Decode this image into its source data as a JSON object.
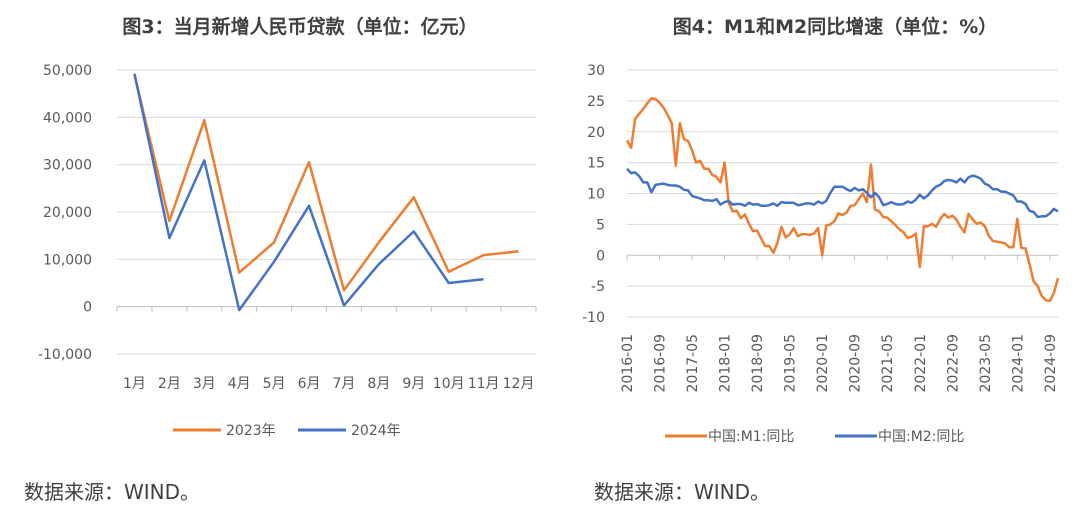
{
  "charts": {
    "left": {
      "title": "图3：当月新增人民币贷款（单位：亿元）",
      "source": "数据来源：WIND。"
    },
    "right": {
      "title": "图4：M1和M2同比增速（单位：%）",
      "source": "数据来源：WIND。"
    }
  },
  "chart_data": [
    {
      "type": "line",
      "title": "图3：当月新增人民币贷款（单位：亿元）",
      "categories": [
        "1月",
        "2月",
        "3月",
        "4月",
        "5月",
        "6月",
        "7月",
        "8月",
        "9月",
        "10月",
        "11月",
        "12月"
      ],
      "ylim": [
        -10000,
        50000
      ],
      "yticks": [
        "-10,000",
        "0",
        "10,000",
        "20,000",
        "30,000",
        "40,000",
        "50,000"
      ],
      "ytick_values": [
        -10000,
        0,
        10000,
        20000,
        30000,
        40000,
        50000
      ],
      "grid": true,
      "legend_position": "bottom",
      "series": [
        {
          "name": "2023年",
          "color": "#ED7D31",
          "values": [
            49000,
            18100,
            39400,
            7200,
            13600,
            30500,
            3460,
            13600,
            23100,
            7384,
            10900,
            11700
          ]
        },
        {
          "name": "2024年",
          "color": "#4472C4",
          "values": [
            49200,
            14500,
            30900,
            -730,
            9500,
            21300,
            260,
            9000,
            15900,
            5000,
            5800,
            null
          ]
        }
      ]
    },
    {
      "type": "line",
      "title": "图4：M1和M2同比增速（单位：%）",
      "x_start": "2016-01",
      "x_end": "2024-11",
      "xticks": [
        "2016-01",
        "2016-09",
        "2017-05",
        "2018-01",
        "2018-09",
        "2019-05",
        "2020-01",
        "2020-09",
        "2021-05",
        "2022-01",
        "2022-09",
        "2023-05",
        "2024-01",
        "2024-09"
      ],
      "ylim": [
        -10,
        30
      ],
      "yticks": [
        "-10",
        "-5",
        "0",
        "5",
        "10",
        "15",
        "20",
        "25",
        "30"
      ],
      "ytick_values": [
        -10,
        -5,
        0,
        5,
        10,
        15,
        20,
        25,
        30
      ],
      "grid": true,
      "legend_position": "bottom",
      "series": [
        {
          "name": "中国:M1:同比",
          "color": "#ED7D31",
          "values": [
            18.6,
            17.4,
            22.1,
            22.9,
            23.7,
            24.6,
            25.4,
            25.3,
            24.7,
            23.9,
            22.7,
            21.4,
            14.5,
            21.4,
            18.8,
            18.5,
            17.0,
            15.0,
            15.3,
            14.0,
            14.0,
            13.0,
            12.7,
            11.8,
            15.0,
            8.5,
            7.1,
            7.2,
            6.0,
            6.6,
            5.1,
            3.9,
            4.0,
            2.7,
            1.5,
            1.5,
            0.4,
            2.0,
            4.6,
            2.9,
            3.4,
            4.4,
            3.1,
            3.4,
            3.4,
            3.3,
            3.5,
            4.4,
            0.0,
            4.8,
            5.0,
            5.5,
            6.8,
            6.5,
            6.9,
            8.0,
            8.1,
            9.1,
            10.0,
            8.6,
            14.7,
            7.4,
            7.1,
            6.2,
            6.1,
            5.5,
            4.9,
            4.2,
            3.7,
            2.8,
            3.0,
            3.5,
            -1.9,
            4.7,
            4.7,
            5.1,
            4.6,
            5.8,
            6.7,
            6.1,
            6.4,
            5.8,
            4.6,
            3.7,
            6.7,
            5.8,
            5.1,
            5.3,
            4.7,
            3.1,
            2.3,
            2.2,
            2.1,
            1.9,
            1.3,
            1.3,
            5.9,
            1.2,
            1.1,
            -1.4,
            -4.2,
            -5.0,
            -6.6,
            -7.3,
            -7.4,
            -6.1,
            -3.7
          ]
        },
        {
          "name": "中国:M2:同比",
          "color": "#4472C4",
          "values": [
            14.0,
            13.3,
            13.4,
            12.8,
            11.8,
            11.8,
            10.2,
            11.4,
            11.5,
            11.6,
            11.4,
            11.3,
            11.3,
            11.1,
            10.6,
            10.5,
            9.6,
            9.4,
            9.2,
            8.9,
            8.9,
            8.8,
            9.1,
            8.2,
            8.6,
            8.8,
            8.2,
            8.3,
            8.3,
            8.0,
            8.5,
            8.2,
            8.3,
            8.0,
            8.0,
            8.1,
            8.4,
            8.0,
            8.6,
            8.5,
            8.5,
            8.5,
            8.1,
            8.2,
            8.4,
            8.4,
            8.2,
            8.7,
            8.4,
            8.8,
            10.1,
            11.1,
            11.1,
            11.1,
            10.7,
            10.4,
            10.9,
            10.5,
            10.7,
            10.1,
            9.4,
            10.1,
            9.4,
            8.1,
            8.3,
            8.6,
            8.3,
            8.2,
            8.3,
            8.7,
            8.5,
            9.0,
            9.8,
            9.2,
            9.7,
            10.5,
            11.1,
            11.4,
            12.0,
            12.2,
            12.1,
            11.8,
            12.4,
            11.8,
            12.6,
            12.9,
            12.7,
            12.4,
            11.6,
            11.3,
            10.7,
            10.7,
            10.3,
            10.3,
            10.0,
            9.7,
            8.7,
            8.7,
            8.3,
            7.2,
            7.0,
            6.2,
            6.3,
            6.3,
            6.8,
            7.5,
            7.1
          ]
        }
      ]
    }
  ]
}
